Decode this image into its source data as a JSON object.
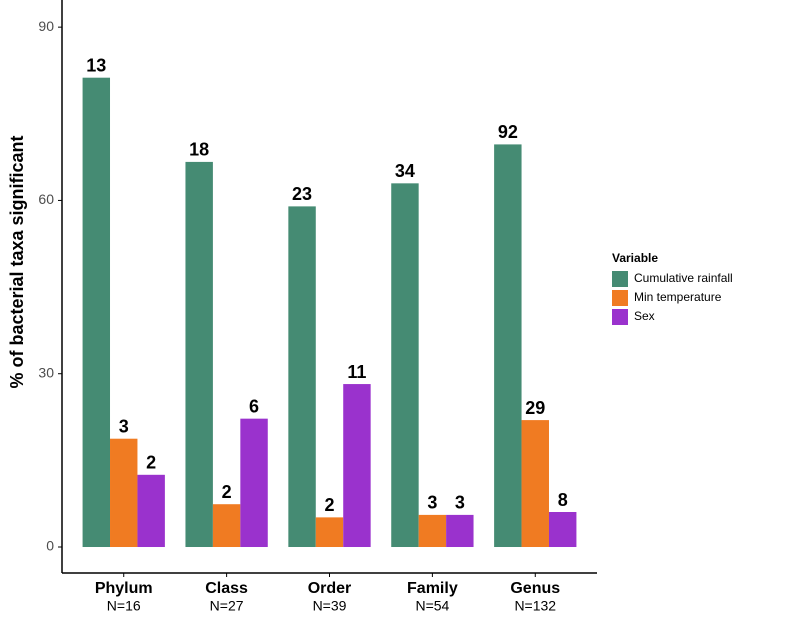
{
  "chart_data": {
    "type": "bar",
    "y_label": "% of bacterial taxa significant",
    "categories": [
      "Phylum",
      "Class",
      "Order",
      "Family",
      "Genus"
    ],
    "category_notes": [
      "N=16",
      "N=27",
      "N=39",
      "N=54",
      "N=132"
    ],
    "series": [
      {
        "name": "Cumulative rainfall",
        "color": "#458b73",
        "values": [
          81.25,
          66.67,
          58.97,
          62.96,
          69.7
        ],
        "counts": [
          13,
          18,
          23,
          34,
          92
        ]
      },
      {
        "name": "Min temperature",
        "color": "#f07b22",
        "values": [
          18.75,
          7.41,
          5.13,
          5.56,
          21.97
        ],
        "counts": [
          3,
          2,
          2,
          3,
          29
        ]
      },
      {
        "name": "Sex",
        "color": "#9a32cd",
        "values": [
          12.5,
          22.22,
          28.21,
          5.56,
          6.06
        ],
        "counts": [
          2,
          6,
          11,
          3,
          8
        ]
      }
    ],
    "legend_title": "Variable",
    "legend_position": "right",
    "ylim": [
      -4.5,
      94.7
    ],
    "yticks": [
      0,
      30,
      60,
      90
    ]
  }
}
